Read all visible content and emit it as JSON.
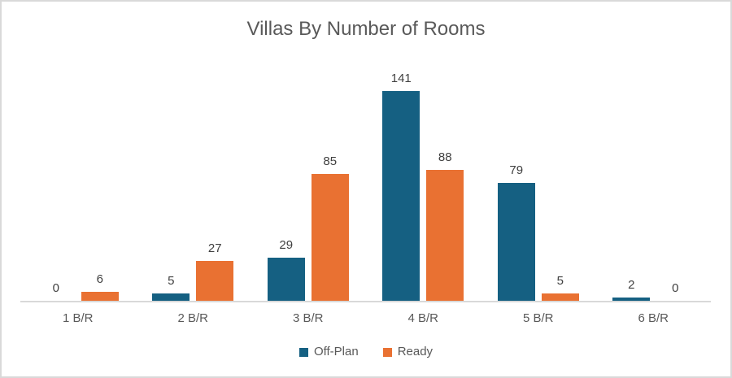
{
  "frame": {
    "background": "#FFFFFF",
    "border_color": "#D9D9D9"
  },
  "chart_data": {
    "type": "bar",
    "title": "Villas By Number of Rooms",
    "categories": [
      "1 B/R",
      "2 B/R",
      "3 B/R",
      "4 B/R",
      "5 B/R",
      "6 B/R"
    ],
    "series": [
      {
        "name": "Off-Plan",
        "color": "#156082",
        "values": [
          0,
          5,
          29,
          141,
          79,
          2
        ]
      },
      {
        "name": "Ready",
        "color": "#E97132",
        "values": [
          6,
          27,
          85,
          88,
          5,
          0
        ]
      }
    ],
    "xlabel": "",
    "ylabel": "",
    "ylim": [
      0,
      150
    ],
    "y_axis_visible": false,
    "gridlines": false,
    "data_labels": true,
    "legend_position": "bottom",
    "title_color": "#595959",
    "data_label_color": "#404040",
    "axis_text_color": "#595959",
    "axis_line_color": "#D9D9D9"
  }
}
